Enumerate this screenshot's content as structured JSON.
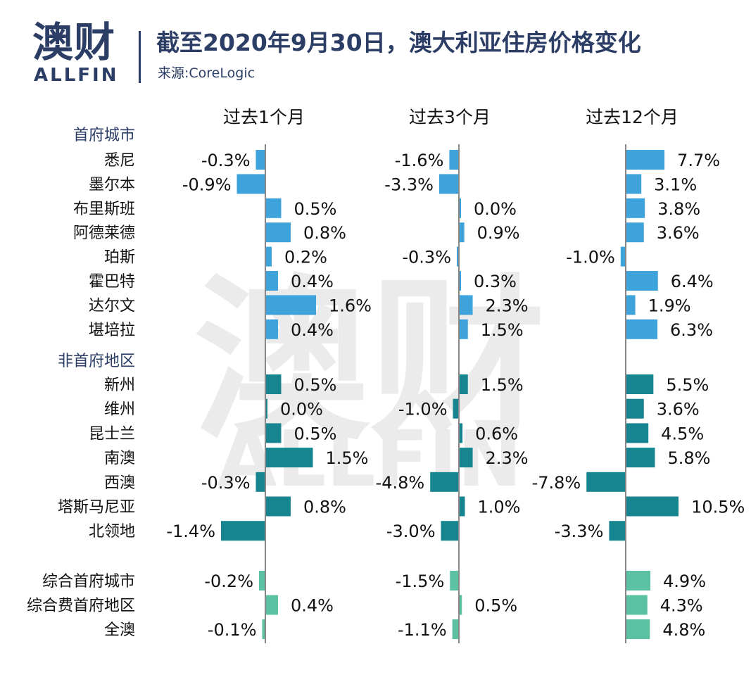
{
  "header": {
    "logo_cn": "澳财",
    "logo_en": "ALLFIN",
    "title": "截至2020年9月30日，澳大利亚住房价格变化",
    "source": "来源:CoreLogic"
  },
  "colors": {
    "brand": "#2c3e66",
    "capital_cities": "#3ea3db",
    "regional": "#16858f",
    "combined": "#5cc1a3",
    "axis": "#888888"
  },
  "chart_data": {
    "type": "bar",
    "orientation": "horizontal",
    "unit": "%",
    "groups": [
      {
        "label": "首府城市",
        "color": "#3ea3db",
        "categories": [
          "悉尼",
          "墨尔本",
          "布里斯班",
          "阿德莱德",
          "珀斯",
          "霍巴特",
          "达尔文",
          "堪培拉"
        ]
      },
      {
        "label": "非首府地区",
        "color": "#16858f",
        "categories": [
          "新州",
          "维州",
          "昆士兰",
          "南澳",
          "西澳",
          "塔斯马尼亚",
          "北领地"
        ]
      },
      {
        "label": "",
        "color": "#5cc1a3",
        "categories": [
          "综合首府城市",
          "综合费首府地区",
          "全澳"
        ]
      }
    ],
    "categories": [
      "悉尼",
      "墨尔本",
      "布里斯班",
      "阿德莱德",
      "珀斯",
      "霍巴特",
      "达尔文",
      "堪培拉",
      "新州",
      "维州",
      "昆士兰",
      "南澳",
      "西澳",
      "塔斯马尼亚",
      "北领地",
      "综合首府城市",
      "综合费首府地区",
      "全澳"
    ],
    "series": [
      {
        "name": "过去1个月",
        "values": [
          -0.3,
          -0.9,
          0.5,
          0.8,
          0.2,
          0.4,
          1.6,
          0.4,
          0.5,
          0.0,
          0.5,
          1.5,
          -0.3,
          0.8,
          -1.4,
          -0.2,
          0.4,
          -0.1
        ],
        "labels": [
          "-0.3%",
          "-0.9%",
          "0.5%",
          "0.8%",
          "0.2%",
          "0.4%",
          "1.6%",
          "0.4%",
          "0.5%",
          "0.0%",
          "0.5%",
          "1.5%",
          "-0.3%",
          "0.8%",
          "-1.4%",
          "-0.2%",
          "0.4%",
          "-0.1%"
        ]
      },
      {
        "name": "过去3个月",
        "values": [
          -1.6,
          -3.3,
          0.0,
          0.9,
          -0.3,
          0.3,
          2.3,
          1.5,
          1.5,
          -1.0,
          0.6,
          2.3,
          -4.8,
          1.0,
          -3.0,
          -1.5,
          0.5,
          -1.1
        ],
        "labels": [
          "-1.6%",
          "-3.3%",
          "0.0%",
          "0.9%",
          "-0.3%",
          "0.3%",
          "2.3%",
          "1.5%",
          "1.5%",
          "-1.0%",
          "0.6%",
          "2.3%",
          "-4.8%",
          "1.0%",
          "-3.0%",
          "-1.5%",
          "0.5%",
          "-1.1%"
        ]
      },
      {
        "name": "过去12个月",
        "values": [
          7.7,
          3.1,
          3.8,
          3.6,
          -1.0,
          6.4,
          1.9,
          6.3,
          5.5,
          3.6,
          4.5,
          5.8,
          -7.8,
          10.5,
          -3.3,
          4.9,
          4.3,
          4.8
        ],
        "labels": [
          "7.7%",
          "3.1%",
          "3.8%",
          "3.6%",
          "-1.0%",
          "6.4%",
          "1.9%",
          "6.3%",
          "5.5%",
          "3.6%",
          "4.5%",
          "5.8%",
          "-7.8%",
          "10.5%",
          "-3.3%",
          "4.9%",
          "4.3%",
          "4.8%"
        ]
      }
    ]
  }
}
